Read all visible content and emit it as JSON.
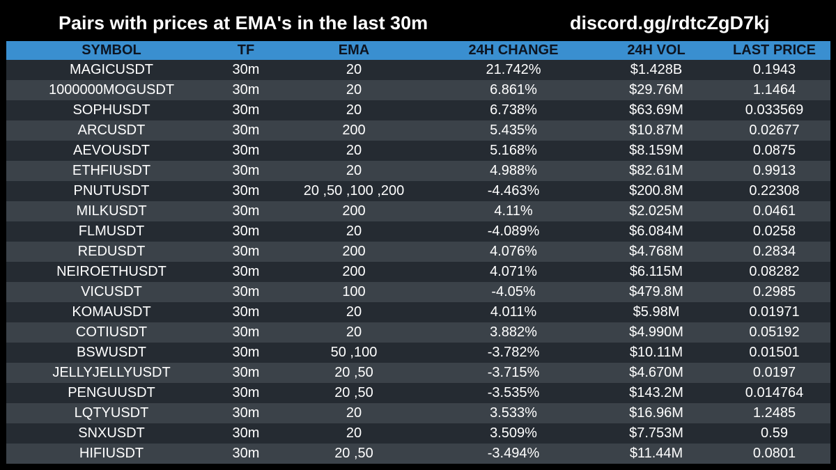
{
  "header": {
    "title": "Pairs with prices at EMA's in the last 30m",
    "link": "discord.gg/rdtcZgD7kj"
  },
  "colors": {
    "background": "#000000",
    "header_row": "#3a8fd0",
    "row_dark": "#252b32",
    "row_light": "#3b4249",
    "text": "#ffffff"
  },
  "table": {
    "columns": [
      "SYMBOL",
      "TF",
      "EMA",
      "24H CHANGE",
      "24H VOL",
      "LAST PRICE"
    ],
    "rows": [
      [
        "MAGICUSDT",
        "30m",
        "20",
        "21.742%",
        "$1.428B",
        "0.1943"
      ],
      [
        "1000000MOGUSDT",
        "30m",
        "20",
        "6.861%",
        "$29.76M",
        "1.1464"
      ],
      [
        "SOPHUSDT",
        "30m",
        "20",
        "6.738%",
        "$63.69M",
        "0.033569"
      ],
      [
        "ARCUSDT",
        "30m",
        "200",
        "5.435%",
        "$10.87M",
        "0.02677"
      ],
      [
        "AEVOUSDT",
        "30m",
        "20",
        "5.168%",
        "$8.159M",
        "0.0875"
      ],
      [
        "ETHFIUSDT",
        "30m",
        "20",
        "4.988%",
        "$82.61M",
        "0.9913"
      ],
      [
        "PNUTUSDT",
        "30m",
        "20 ,50 ,100 ,200",
        "-4.463%",
        "$200.8M",
        "0.22308"
      ],
      [
        "MILKUSDT",
        "30m",
        "200",
        "4.11%",
        "$2.025M",
        "0.0461"
      ],
      [
        "FLMUSDT",
        "30m",
        "20",
        "-4.089%",
        "$6.084M",
        "0.0258"
      ],
      [
        "REDUSDT",
        "30m",
        "200",
        "4.076%",
        "$4.768M",
        "0.2834"
      ],
      [
        "NEIROETHUSDT",
        "30m",
        "200",
        "4.071%",
        "$6.115M",
        "0.08282"
      ],
      [
        "VICUSDT",
        "30m",
        "100",
        "-4.05%",
        "$479.8M",
        "0.2985"
      ],
      [
        "KOMAUSDT",
        "30m",
        "20",
        "4.011%",
        "$5.98M",
        "0.01971"
      ],
      [
        "COTIUSDT",
        "30m",
        "20",
        "3.882%",
        "$4.990M",
        "0.05192"
      ],
      [
        "BSWUSDT",
        "30m",
        "50 ,100",
        "-3.782%",
        "$10.11M",
        "0.01501"
      ],
      [
        "JELLYJELLYUSDT",
        "30m",
        "20 ,50",
        "-3.715%",
        "$4.670M",
        "0.0197"
      ],
      [
        "PENGUUSDT",
        "30m",
        "20 ,50",
        "-3.535%",
        "$143.2M",
        "0.014764"
      ],
      [
        "LQTYUSDT",
        "30m",
        "20",
        "3.533%",
        "$16.96M",
        "1.2485"
      ],
      [
        "SNXUSDT",
        "30m",
        "20",
        "3.509%",
        "$7.753M",
        "0.59"
      ],
      [
        "HIFIUSDT",
        "30m",
        "20 ,50",
        "-3.494%",
        "$11.44M",
        "0.0801"
      ]
    ]
  }
}
